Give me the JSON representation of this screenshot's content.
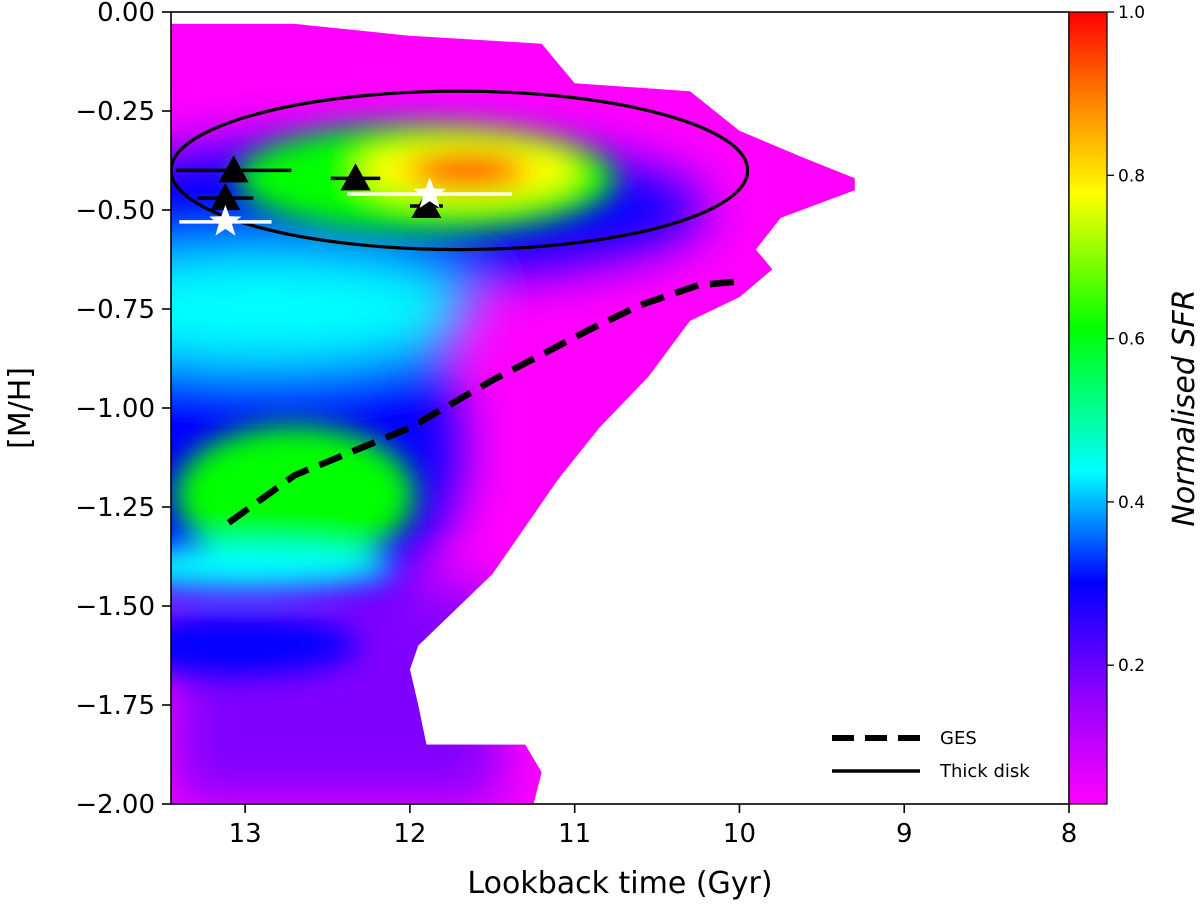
{
  "chart_data": {
    "type": "heatmap",
    "title": "",
    "xlabel": "Lookback time (Gyr)",
    "ylabel": "[M/H]",
    "xlim": [
      13.45,
      8.0
    ],
    "ylim": [
      -2.0,
      0.0
    ],
    "x_ticks": [
      "13",
      "12",
      "11",
      "10",
      "9",
      "8"
    ],
    "y_ticks": [
      "0.00",
      "−0.25",
      "−0.50",
      "−0.75",
      "−1.00",
      "−1.25",
      "−1.50",
      "−1.75",
      "−2.00"
    ],
    "colorbar": {
      "label": "Normalised SFR",
      "range": [
        0.03,
        1.0
      ],
      "ticks": [
        "0.2",
        "0.4",
        "0.6",
        "0.8",
        "1.0"
      ],
      "colormap": [
        "#ff00ff",
        "#8000ff",
        "#0000ff",
        "#00ffff",
        "#00ff00",
        "#ffff00",
        "#ff8000",
        "#ff0000"
      ]
    },
    "sfr_peaks": [
      {
        "t": 11.65,
        "mh": -0.4,
        "level": 1.0
      },
      {
        "t": 12.7,
        "mh": -1.22,
        "level": 0.62
      },
      {
        "t": 12.9,
        "mh": -0.72,
        "level": 0.35
      },
      {
        "t": 13.1,
        "mh": -1.6,
        "level": 0.28
      }
    ],
    "series": [
      {
        "name": "GES",
        "style": "dashed",
        "color": "#000000",
        "x": [
          13.1,
          12.7,
          12.0,
          11.5,
          10.9,
          10.6,
          10.25,
          10.0
        ],
        "y": [
          -1.29,
          -1.17,
          -1.05,
          -0.93,
          -0.8,
          -0.74,
          -0.69,
          -0.68
        ]
      },
      {
        "name": "Thick disk",
        "style": "solid",
        "color": "#000000",
        "shape": "ellipse",
        "center": [
          11.7,
          -0.4
        ],
        "half_width_gyr": 1.75,
        "half_height_dex": 0.2
      }
    ],
    "markers": [
      {
        "marker": "triangle",
        "color": "#000000",
        "t": 13.07,
        "mh": -0.4,
        "xerr": [
          0.35,
          0.35
        ]
      },
      {
        "marker": "triangle",
        "color": "#000000",
        "t": 13.12,
        "mh": -0.47,
        "xerr": [
          0.17,
          0.17
        ]
      },
      {
        "marker": "triangle",
        "color": "#000000",
        "t": 12.33,
        "mh": -0.42,
        "xerr": [
          0.15,
          0.15
        ]
      },
      {
        "marker": "triangle",
        "color": "#000000",
        "t": 11.9,
        "mh": -0.49,
        "xerr": [
          0.1,
          0.1
        ]
      },
      {
        "marker": "star",
        "color": "#ffffff",
        "t": 13.12,
        "mh": -0.53,
        "xerr": [
          0.28,
          0.28
        ]
      },
      {
        "marker": "star",
        "color": "#ffffff",
        "t": 11.88,
        "mh": -0.46,
        "xerr": [
          0.5,
          0.5
        ]
      }
    ],
    "legend": {
      "placement": "lower-right",
      "entries": [
        "GES",
        "Thick disk"
      ]
    },
    "grid": false
  }
}
